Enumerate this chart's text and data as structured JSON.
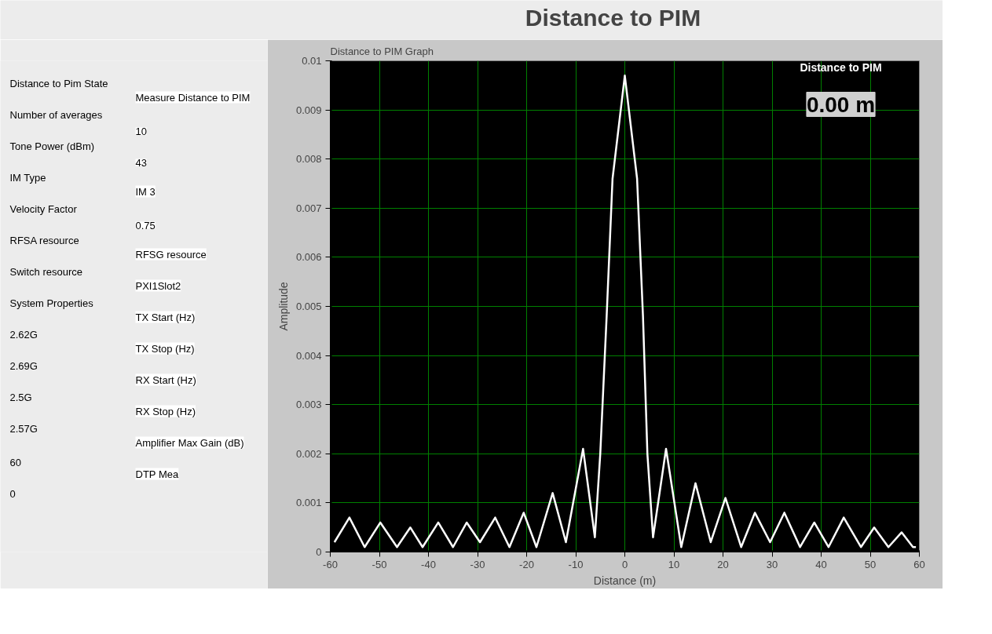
{
  "chart_data": {
    "type": "line",
    "title": "Distance to PIM",
    "subtitle": "Distance to PIM Graph",
    "xlabel": "Distance (m)",
    "ylabel": "Amplitude",
    "x": [
      -59.15,
      -56.1,
      -53.0,
      -49.8,
      -46.4,
      -43.7,
      -41.2,
      -38.0,
      -35.0,
      -32.2,
      -29.5,
      -26.4,
      -23.5,
      -20.6,
      -18.0,
      -14.7,
      -12.0,
      -8.5,
      -6.1,
      -5.0,
      -3.7,
      -2.5,
      0,
      2.5,
      3.7,
      4.6,
      5.75,
      8.4,
      11.5,
      14.4,
      17.5,
      20.5,
      23.7,
      26.5,
      29.6,
      32.5,
      35.7,
      38.6,
      41.5,
      44.6,
      48.1,
      50.8,
      53.7,
      56.4,
      58.7,
      59.3
    ],
    "series": [
      {
        "color": "#ffffff",
        "values": [
          0.0002,
          0.0007,
          0.0001,
          0.0006,
          0.0001,
          0.0005,
          0.0001,
          0.0006,
          0.0001,
          0.0006,
          0.0002,
          0.0007,
          0.0001,
          0.0008,
          0.0001,
          0.0012,
          0.0002,
          0.0021,
          0.0003,
          0.002,
          0.0048,
          0.0076,
          0.0097,
          0.0076,
          0.0048,
          0.002,
          0.0003,
          0.0021,
          0.0001,
          0.0014,
          0.0002,
          0.0011,
          0.0001,
          0.0008,
          0.0002,
          0.0008,
          0.0001,
          0.0006,
          0.0001,
          0.0007,
          0.0001,
          0.0005,
          0.0001,
          0.0004,
          0.0001,
          0.0001
        ]
      }
    ],
    "xlim": [
      -60,
      60
    ],
    "xticks": [
      -60,
      -50,
      -40,
      -30,
      -20,
      -10,
      0,
      10,
      20,
      30,
      40,
      50,
      60
    ],
    "ylim": [
      0,
      0.01
    ],
    "yticks": [
      0,
      0.001,
      0.002,
      0.003,
      0.004,
      0.005,
      0.006,
      0.007,
      0.008,
      0.009,
      0.01
    ],
    "grid": true,
    "marker": "none",
    "line_style": "solid",
    "annotations": [
      "Distance to PIM",
      "0.00 m",
      "Distance to Pim State",
      "Measure Distance to PIM",
      "Number of averages",
      "10",
      "Tone Power (dBm)",
      "43",
      "IM Type",
      "IM 3",
      "Velocity Factor",
      "0.75",
      "RFSA resource",
      "RFSG resource",
      "Switch resource",
      "PXI1Slot2",
      "System Properties",
      "TX Start (Hz)",
      "2.62G",
      "TX Stop (Hz)",
      "2.69G",
      "RX Start (Hz)",
      "2.5G",
      "RX Stop (Hz)",
      "2.57G",
      "Amplifier Max Gain (dB)",
      "60",
      "DTP Mea",
      "0"
    ]
  }
}
